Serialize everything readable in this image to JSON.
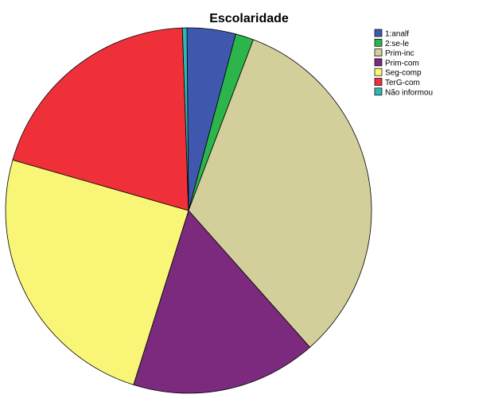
{
  "chart_data": {
    "type": "pie",
    "title": "Escolaridade",
    "legend_position": "top-right",
    "slices": [
      {
        "label": "1:analf",
        "value": 4.3,
        "color": "#3f58ad"
      },
      {
        "label": "2:se-le",
        "value": 1.6,
        "color": "#2bb54a"
      },
      {
        "label": "Prim-inc",
        "value": 32.7,
        "color": "#d3cf9b"
      },
      {
        "label": "Prim-com",
        "value": 16.4,
        "color": "#7b2a7e"
      },
      {
        "label": "Seg-comp",
        "value": 24.6,
        "color": "#f9f576"
      },
      {
        "label": "TerG-com",
        "value": 20.0,
        "color": "#ef3038"
      },
      {
        "label": "Não informou",
        "value": 0.4,
        "color": "#2fb7b3"
      }
    ]
  }
}
